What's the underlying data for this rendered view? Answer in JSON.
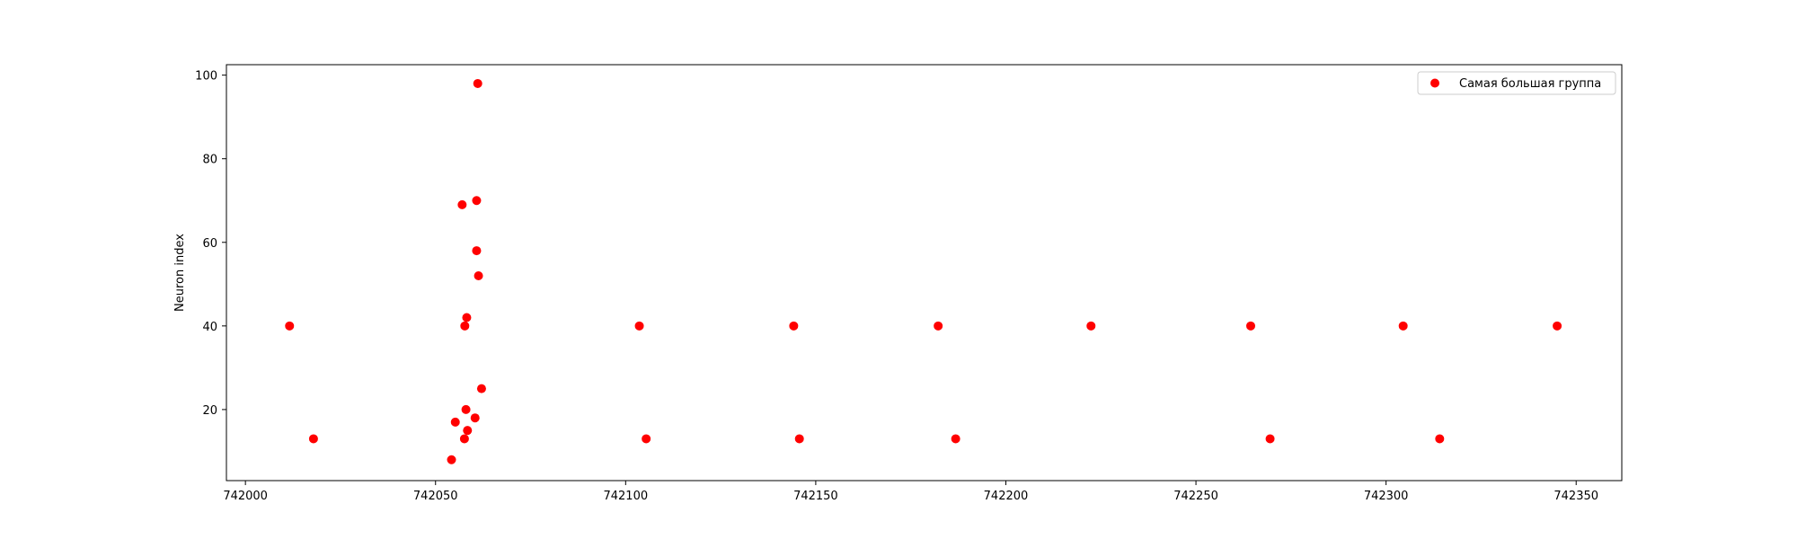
{
  "chart_data": {
    "type": "scatter",
    "title": "",
    "xlabel": "",
    "ylabel": "Neuron index",
    "xlim": [
      741995,
      742362
    ],
    "ylim": [
      3,
      102.5
    ],
    "xticks": [
      742000,
      742050,
      742100,
      742150,
      742200,
      742250,
      742300,
      742350
    ],
    "yticks": [
      20,
      40,
      60,
      80,
      100
    ],
    "grid": false,
    "legend_position": "top-right",
    "series": [
      {
        "name": "Самая большая группа",
        "color": "#ff0000",
        "marker": "circle",
        "points": [
          {
            "x": 742011.6,
            "y": 40
          },
          {
            "x": 742017.9,
            "y": 13
          },
          {
            "x": 742054.2,
            "y": 8
          },
          {
            "x": 742055.2,
            "y": 17
          },
          {
            "x": 742057.0,
            "y": 69
          },
          {
            "x": 742057.6,
            "y": 13
          },
          {
            "x": 742057.7,
            "y": 40
          },
          {
            "x": 742058.0,
            "y": 20
          },
          {
            "x": 742058.2,
            "y": 42
          },
          {
            "x": 742058.4,
            "y": 15
          },
          {
            "x": 742060.4,
            "y": 18
          },
          {
            "x": 742060.8,
            "y": 70
          },
          {
            "x": 742060.8,
            "y": 58
          },
          {
            "x": 742061.1,
            "y": 98
          },
          {
            "x": 742061.3,
            "y": 52
          },
          {
            "x": 742062.1,
            "y": 25
          },
          {
            "x": 742103.6,
            "y": 40
          },
          {
            "x": 742105.4,
            "y": 13
          },
          {
            "x": 742144.2,
            "y": 40
          },
          {
            "x": 742145.7,
            "y": 13
          },
          {
            "x": 742182.2,
            "y": 40
          },
          {
            "x": 742186.8,
            "y": 13
          },
          {
            "x": 742222.4,
            "y": 40
          },
          {
            "x": 742264.4,
            "y": 40
          },
          {
            "x": 742269.5,
            "y": 13
          },
          {
            "x": 742304.5,
            "y": 40
          },
          {
            "x": 742314.1,
            "y": 13
          },
          {
            "x": 742345.0,
            "y": 40
          }
        ]
      }
    ]
  }
}
